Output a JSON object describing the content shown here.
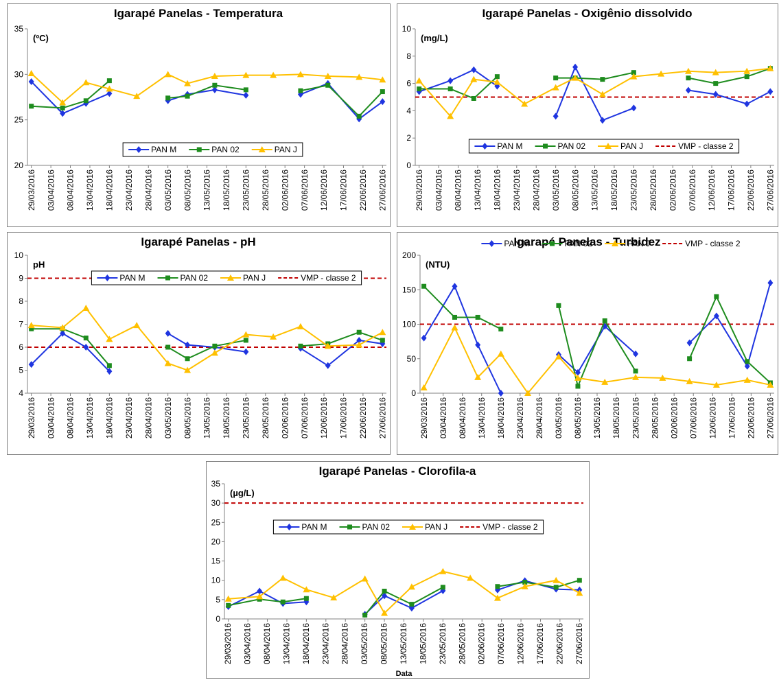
{
  "chart_data": [
    {
      "type": "line",
      "title": "Igarapé Panelas - Temperatura",
      "y_unit": "(ºC)",
      "x": [
        "29/03/2016",
        "06/04/2016",
        "12/04/2016",
        "18/04/2016",
        "25/04/2016",
        "03/05/2016",
        "08/05/2016",
        "15/05/2016",
        "23/05/2016",
        "30/05/2016",
        "06/06/2016",
        "13/06/2016",
        "21/06/2016",
        "27/06/2016"
      ],
      "xlim": [
        "28/03/2016",
        "28/06/2016"
      ],
      "xticks": [
        "29/03/2016",
        "03/04/2016",
        "08/04/2016",
        "13/04/2016",
        "18/04/2016",
        "23/04/2016",
        "28/04/2016",
        "03/05/2016",
        "08/05/2016",
        "13/05/2016",
        "18/05/2016",
        "23/05/2016",
        "28/05/2016",
        "02/06/2016",
        "07/06/2016",
        "12/06/2016",
        "17/06/2016",
        "22/06/2016",
        "27/06/2016"
      ],
      "ylim": [
        20,
        35
      ],
      "yticks": [
        20,
        25,
        30,
        35
      ],
      "legend": "lower center",
      "series": [
        {
          "name": "PAN M",
          "color": "#1f35e0",
          "marker": "diamond",
          "values": [
            29.2,
            25.7,
            26.8,
            27.9,
            null,
            27.1,
            27.8,
            28.3,
            27.7,
            null,
            27.8,
            29.0,
            25.1,
            27.0
          ]
        },
        {
          "name": "PAN 02",
          "color": "#1e8c1e",
          "marker": "square",
          "values": [
            26.5,
            26.3,
            27.1,
            29.3,
            null,
            27.4,
            27.6,
            28.8,
            28.3,
            null,
            28.2,
            28.8,
            25.4,
            28.1
          ]
        },
        {
          "name": "PAN J",
          "color": "#ffc000",
          "marker": "triangle",
          "values": [
            30.1,
            26.9,
            29.1,
            28.4,
            27.6,
            30.0,
            29.0,
            29.8,
            29.9,
            29.9,
            30.0,
            29.8,
            29.7,
            29.4
          ]
        }
      ]
    },
    {
      "type": "line",
      "title": "Igarapé Panelas - Oxigênio dissolvido",
      "y_unit": "(mg/L)",
      "x": [
        "29/03/2016",
        "06/04/2016",
        "12/04/2016",
        "18/04/2016",
        "25/04/2016",
        "03/05/2016",
        "08/05/2016",
        "15/05/2016",
        "23/05/2016",
        "30/05/2016",
        "06/06/2016",
        "13/06/2016",
        "21/06/2016",
        "27/06/2016"
      ],
      "xlim": [
        "28/03/2016",
        "28/06/2016"
      ],
      "xticks": [
        "29/03/2016",
        "03/04/2016",
        "08/04/2016",
        "13/04/2016",
        "18/04/2016",
        "23/04/2016",
        "28/04/2016",
        "03/05/2016",
        "08/05/2016",
        "13/05/2016",
        "18/05/2016",
        "23/05/2016",
        "28/05/2016",
        "02/06/2016",
        "07/06/2016",
        "12/06/2016",
        "17/06/2016",
        "22/06/2016",
        "27/06/2016"
      ],
      "ylim": [
        0,
        10
      ],
      "yticks": [
        0,
        2,
        4,
        6,
        8,
        10
      ],
      "legend": "lower center",
      "series": [
        {
          "name": "PAN M",
          "color": "#1f35e0",
          "marker": "diamond",
          "values": [
            5.4,
            6.2,
            7.0,
            5.8,
            null,
            3.6,
            7.2,
            3.3,
            4.2,
            null,
            5.5,
            5.2,
            4.5,
            5.4
          ]
        },
        {
          "name": "PAN 02",
          "color": "#1e8c1e",
          "marker": "square",
          "values": [
            5.6,
            5.6,
            4.9,
            6.5,
            null,
            6.4,
            6.4,
            6.3,
            6.8,
            null,
            6.4,
            6.0,
            6.5,
            7.1
          ]
        },
        {
          "name": "PAN J",
          "color": "#ffc000",
          "marker": "triangle",
          "values": [
            6.2,
            3.6,
            6.3,
            6.1,
            4.5,
            5.7,
            6.4,
            5.2,
            6.5,
            6.7,
            6.9,
            6.8,
            6.9,
            7.1
          ]
        }
      ],
      "reference": {
        "name": "VMP - classe 2",
        "color": "#c00000",
        "values": [
          5
        ]
      }
    },
    {
      "type": "line",
      "title": "Igarapé Panelas - pH",
      "y_unit": "pH",
      "x": [
        "29/03/2016",
        "06/04/2016",
        "12/04/2016",
        "18/04/2016",
        "25/04/2016",
        "03/05/2016",
        "08/05/2016",
        "15/05/2016",
        "23/05/2016",
        "30/05/2016",
        "06/06/2016",
        "13/06/2016",
        "21/06/2016",
        "27/06/2016"
      ],
      "xlim": [
        "28/03/2016",
        "28/06/2016"
      ],
      "xticks": [
        "29/03/2016",
        "03/04/2016",
        "08/04/2016",
        "13/04/2016",
        "18/04/2016",
        "23/04/2016",
        "28/04/2016",
        "03/05/2016",
        "08/05/2016",
        "13/05/2016",
        "18/05/2016",
        "23/05/2016",
        "28/05/2016",
        "02/06/2016",
        "07/06/2016",
        "12/06/2016",
        "17/06/2016",
        "22/06/2016",
        "27/06/2016"
      ],
      "ylim": [
        4,
        10
      ],
      "yticks": [
        4,
        5,
        6,
        7,
        8,
        9,
        10
      ],
      "legend": "upper center",
      "series": [
        {
          "name": "PAN M",
          "color": "#1f35e0",
          "marker": "diamond",
          "values": [
            5.25,
            6.6,
            6.0,
            4.95,
            null,
            6.6,
            6.1,
            6.0,
            5.8,
            null,
            5.95,
            5.2,
            6.3,
            6.15
          ]
        },
        {
          "name": "PAN 02",
          "color": "#1e8c1e",
          "marker": "square",
          "values": [
            6.8,
            6.8,
            6.4,
            5.2,
            null,
            6.0,
            5.5,
            6.05,
            6.3,
            null,
            6.05,
            6.15,
            6.65,
            6.3
          ]
        },
        {
          "name": "PAN J",
          "color": "#ffc000",
          "marker": "triangle",
          "values": [
            6.95,
            6.85,
            7.7,
            6.35,
            6.95,
            5.3,
            5.0,
            5.75,
            6.55,
            6.45,
            6.9,
            6.05,
            6.1,
            6.65
          ]
        }
      ],
      "reference": {
        "name": "VMP - classe 2",
        "color": "#c00000",
        "values": [
          6,
          9
        ]
      }
    },
    {
      "type": "line",
      "title": "Igarapé Panelas - Turbidez",
      "y_unit": "(NTU)",
      "x": [
        "29/03/2016",
        "06/04/2016",
        "12/04/2016",
        "18/04/2016",
        "25/04/2016",
        "03/05/2016",
        "08/05/2016",
        "15/05/2016",
        "23/05/2016",
        "30/05/2016",
        "06/06/2016",
        "13/06/2016",
        "21/06/2016",
        "27/06/2016"
      ],
      "xlim": [
        "28/03/2016",
        "28/06/2016"
      ],
      "xticks": [
        "29/03/2016",
        "03/04/2016",
        "08/04/2016",
        "13/04/2016",
        "18/04/2016",
        "23/04/2016",
        "28/04/2016",
        "03/05/2016",
        "08/05/2016",
        "13/05/2016",
        "18/05/2016",
        "23/05/2016",
        "28/05/2016",
        "02/06/2016",
        "07/06/2016",
        "12/06/2016",
        "17/06/2016",
        "22/06/2016",
        "27/06/2016"
      ],
      "ylim": [
        0,
        200
      ],
      "yticks": [
        0,
        50,
        100,
        150,
        200
      ],
      "legend": "upper center",
      "series": [
        {
          "name": "PAN M",
          "color": "#1f35e0",
          "marker": "diamond",
          "values": [
            80,
            155,
            70,
            0,
            null,
            56,
            30,
            97,
            57,
            null,
            73,
            112,
            39,
            160
          ]
        },
        {
          "name": "PAN 02",
          "color": "#1e8c1e",
          "marker": "square",
          "values": [
            155,
            110,
            110,
            93,
            null,
            127,
            10,
            105,
            32,
            null,
            50,
            140,
            46,
            15
          ]
        },
        {
          "name": "PAN J",
          "color": "#ffc000",
          "marker": "triangle",
          "values": [
            8,
            95,
            23,
            57,
            0,
            53,
            22,
            16,
            23,
            22,
            17,
            12,
            19,
            12
          ]
        }
      ],
      "reference": {
        "name": "VMP - classe 2",
        "color": "#c00000",
        "values": [
          100
        ]
      }
    },
    {
      "type": "line",
      "title": "Igarapé Panelas - Clorofila-a",
      "y_unit": "(µg/L)",
      "x_label": "Data",
      "x": [
        "29/03/2016",
        "06/04/2016",
        "12/04/2016",
        "18/04/2016",
        "25/04/2016",
        "03/05/2016",
        "08/05/2016",
        "15/05/2016",
        "23/05/2016",
        "30/05/2016",
        "06/06/2016",
        "13/06/2016",
        "21/06/2016",
        "27/06/2016"
      ],
      "xlim": [
        "28/03/2016",
        "28/06/2016"
      ],
      "xticks": [
        "29/03/2016",
        "03/04/2016",
        "08/04/2016",
        "13/04/2016",
        "18/04/2016",
        "23/04/2016",
        "28/04/2016",
        "03/05/2016",
        "08/05/2016",
        "13/05/2016",
        "18/05/2016",
        "23/05/2016",
        "28/05/2016",
        "02/06/2016",
        "07/06/2016",
        "12/06/2016",
        "17/06/2016",
        "22/06/2016",
        "27/06/2016"
      ],
      "ylim": [
        0,
        35
      ],
      "yticks": [
        0,
        5,
        10,
        15,
        20,
        25,
        30,
        35
      ],
      "legend": "upper center",
      "series": [
        {
          "name": "PAN M",
          "color": "#1f35e0",
          "marker": "diamond",
          "values": [
            3.2,
            7.2,
            4.0,
            4.4,
            null,
            1.2,
            6.0,
            2.8,
            7.3,
            null,
            7.5,
            9.9,
            7.7,
            7.5
          ]
        },
        {
          "name": "PAN 02",
          "color": "#1e8c1e",
          "marker": "square",
          "values": [
            3.5,
            5.1,
            4.4,
            5.3,
            null,
            1.0,
            7.2,
            3.8,
            8.2,
            null,
            8.4,
            9.5,
            8.2,
            10.0
          ]
        },
        {
          "name": "PAN J",
          "color": "#ffc000",
          "marker": "triangle",
          "values": [
            5.2,
            5.8,
            10.6,
            7.6,
            5.5,
            10.4,
            1.5,
            8.3,
            12.3,
            10.6,
            5.4,
            8.4,
            10.0,
            6.7
          ]
        }
      ],
      "reference": {
        "name": "VMP - classe 2",
        "color": "#c00000",
        "values": [
          30
        ]
      }
    }
  ]
}
